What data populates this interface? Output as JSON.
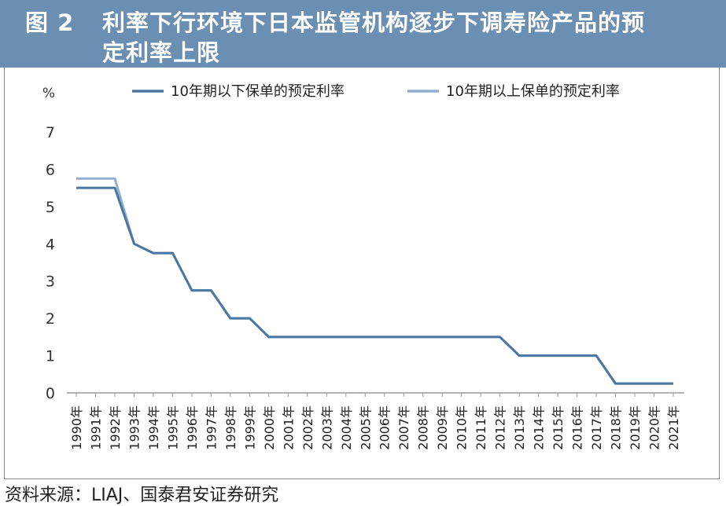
{
  "header": {
    "figure_label": "图 2",
    "title_line1": "利率下行环境下日本监管机构逐步下调寿险产品的预",
    "title_line2": "定利率上限"
  },
  "source": "资料来源：LIAJ、国泰君安证券研究",
  "colors": {
    "header_bg": "#6b8fb3",
    "series_below_10y": "#4a76a0",
    "series_above_10y": "#8fb0cf"
  },
  "chart_data": {
    "type": "line",
    "ylabel": "%",
    "ylim": [
      0,
      7
    ],
    "yticks": [
      "0",
      "1",
      "2",
      "3",
      "4",
      "5",
      "6",
      "7"
    ],
    "grid": false,
    "legend_position": "top",
    "categories": [
      "1990年",
      "1991年",
      "1992年",
      "1993年",
      "1994年",
      "1995年",
      "1996年",
      "1997年",
      "1998年",
      "1999年",
      "2000年",
      "2001年",
      "2002年",
      "2003年",
      "2004年",
      "2005年",
      "2006年",
      "2007年",
      "2008年",
      "2009年",
      "2010年",
      "2011年",
      "2012年",
      "2013年",
      "2014年",
      "2015年",
      "2016年",
      "2017年",
      "2018年",
      "2019年",
      "2020年",
      "2021年"
    ],
    "series": [
      {
        "name": "10年期以下保单的预定利率",
        "values": [
          5.5,
          5.5,
          5.5,
          4.0,
          3.75,
          3.75,
          2.75,
          2.75,
          2.0,
          2.0,
          1.5,
          1.5,
          1.5,
          1.5,
          1.5,
          1.5,
          1.5,
          1.5,
          1.5,
          1.5,
          1.5,
          1.5,
          1.5,
          1.0,
          1.0,
          1.0,
          1.0,
          1.0,
          0.25,
          0.25,
          0.25,
          0.25
        ]
      },
      {
        "name": "10年期以上保单的预定利率",
        "values": [
          5.75,
          5.75,
          5.75,
          4.0,
          3.75,
          3.75,
          2.75,
          2.75,
          2.0,
          2.0,
          1.5,
          1.5,
          1.5,
          1.5,
          1.5,
          1.5,
          1.5,
          1.5,
          1.5,
          1.5,
          1.5,
          1.5,
          1.5,
          1.0,
          1.0,
          1.0,
          1.0,
          1.0,
          0.25,
          0.25,
          0.25,
          0.25
        ]
      }
    ]
  }
}
